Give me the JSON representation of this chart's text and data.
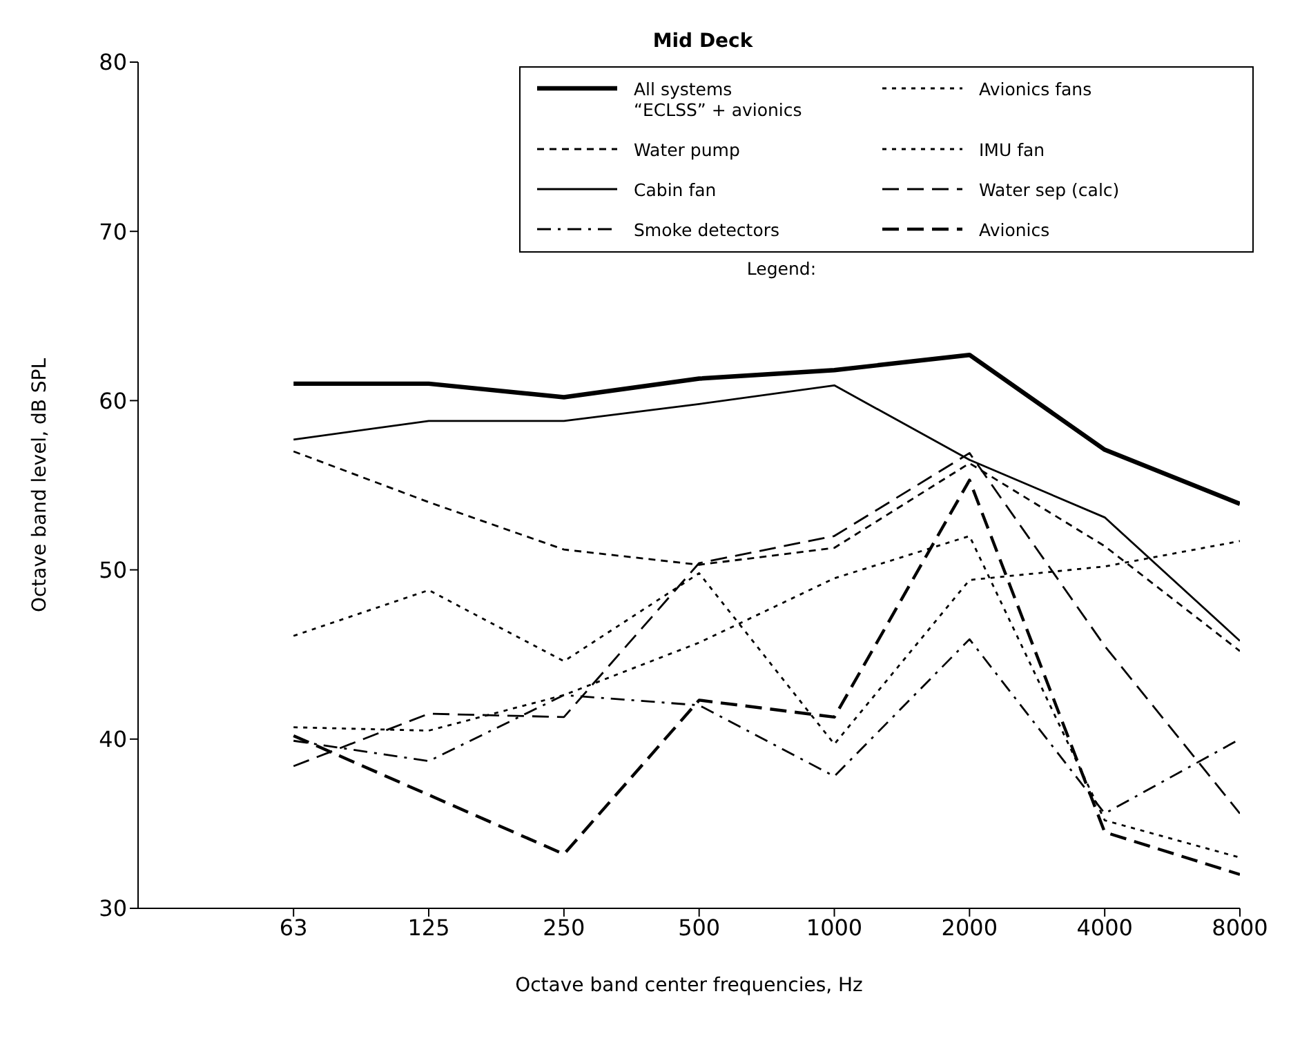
{
  "chart_data": {
    "type": "line",
    "title": "Mid Deck",
    "xlabel": "Octave band center frequencies, Hz",
    "ylabel": "Octave band level, dB  SPL",
    "categories": [
      "63",
      "125",
      "250",
      "500",
      "1000",
      "2000",
      "4000",
      "8000"
    ],
    "ylim": [
      30,
      80
    ],
    "yticks": [
      30,
      40,
      50,
      60,
      70,
      80
    ],
    "grid": false,
    "legend": "top right",
    "legend_title": "Legend:",
    "marker": "none",
    "series": [
      {
        "name": "All systems\n“ECLSS” + avionics",
        "color": "#000000",
        "line_style": "solid",
        "values": [
          61.0,
          61.0,
          60.2,
          61.3,
          61.8,
          62.7,
          57.1,
          53.9
        ]
      },
      {
        "name": "Avionics fans",
        "color": "#000000",
        "line_style": "dotted",
        "values": [
          40.7,
          40.5,
          42.6,
          45.7,
          49.5,
          52.0,
          35.2,
          33.0
        ]
      },
      {
        "name": "Water pump",
        "color": "#000000",
        "line_style": "dashed",
        "values": [
          57.0,
          54.0,
          51.2,
          50.3,
          51.3,
          56.3,
          51.4,
          45.2
        ]
      },
      {
        "name": "IMU fan",
        "color": "#000000",
        "line_style": "dotted",
        "values": [
          46.1,
          48.8,
          44.6,
          49.8,
          39.7,
          49.4,
          50.2,
          51.7
        ]
      },
      {
        "name": "Cabin fan",
        "color": "#000000",
        "line_style": "solid",
        "values": [
          57.7,
          58.8,
          58.8,
          59.8,
          60.9,
          56.5,
          53.1,
          45.8
        ]
      },
      {
        "name": "Water sep (calc)",
        "color": "#000000",
        "line_style": "dashed",
        "values": [
          38.4,
          41.5,
          41.3,
          50.4,
          52.0,
          56.9,
          45.5,
          35.6
        ]
      },
      {
        "name": "Smoke detectors",
        "color": "#000000",
        "line_style": "dashdot",
        "values": [
          39.9,
          38.7,
          42.6,
          42.0,
          37.8,
          45.9,
          35.6,
          40.0
        ]
      },
      {
        "name": "Avionics",
        "color": "#000000",
        "line_style": "dashed",
        "values": [
          40.2,
          36.7,
          33.2,
          42.3,
          41.3,
          55.3,
          34.5,
          32.0
        ]
      }
    ]
  }
}
